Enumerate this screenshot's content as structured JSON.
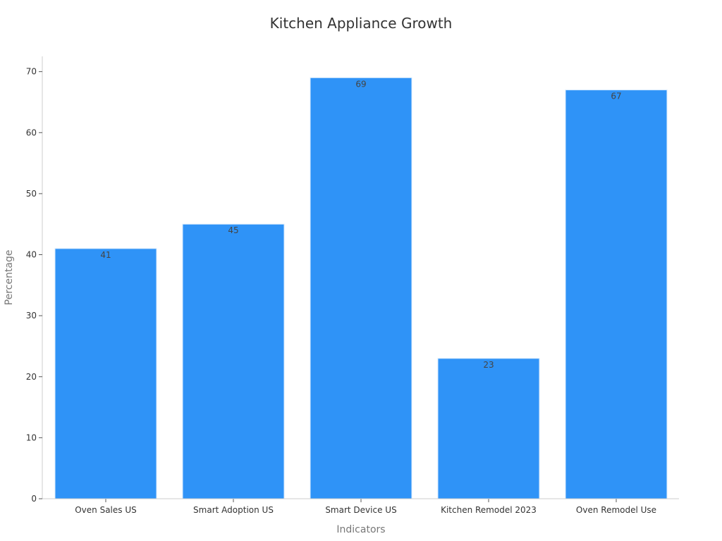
{
  "chart_data": {
    "type": "bar",
    "title": "Kitchen Appliance Growth",
    "xlabel": "Indicators",
    "ylabel": "Percentage",
    "categories": [
      "Oven Sales US",
      "Smart Adoption US",
      "Smart Device US",
      "Kitchen Remodel 2023",
      "Oven Remodel Use"
    ],
    "values": [
      41,
      45,
      69,
      23,
      67
    ],
    "ylim": [
      0,
      72.5
    ],
    "yticks": [
      0,
      10,
      20,
      30,
      40,
      50,
      60,
      70
    ],
    "bar_color": "#2f93f7",
    "grid": false,
    "legend": "none"
  }
}
